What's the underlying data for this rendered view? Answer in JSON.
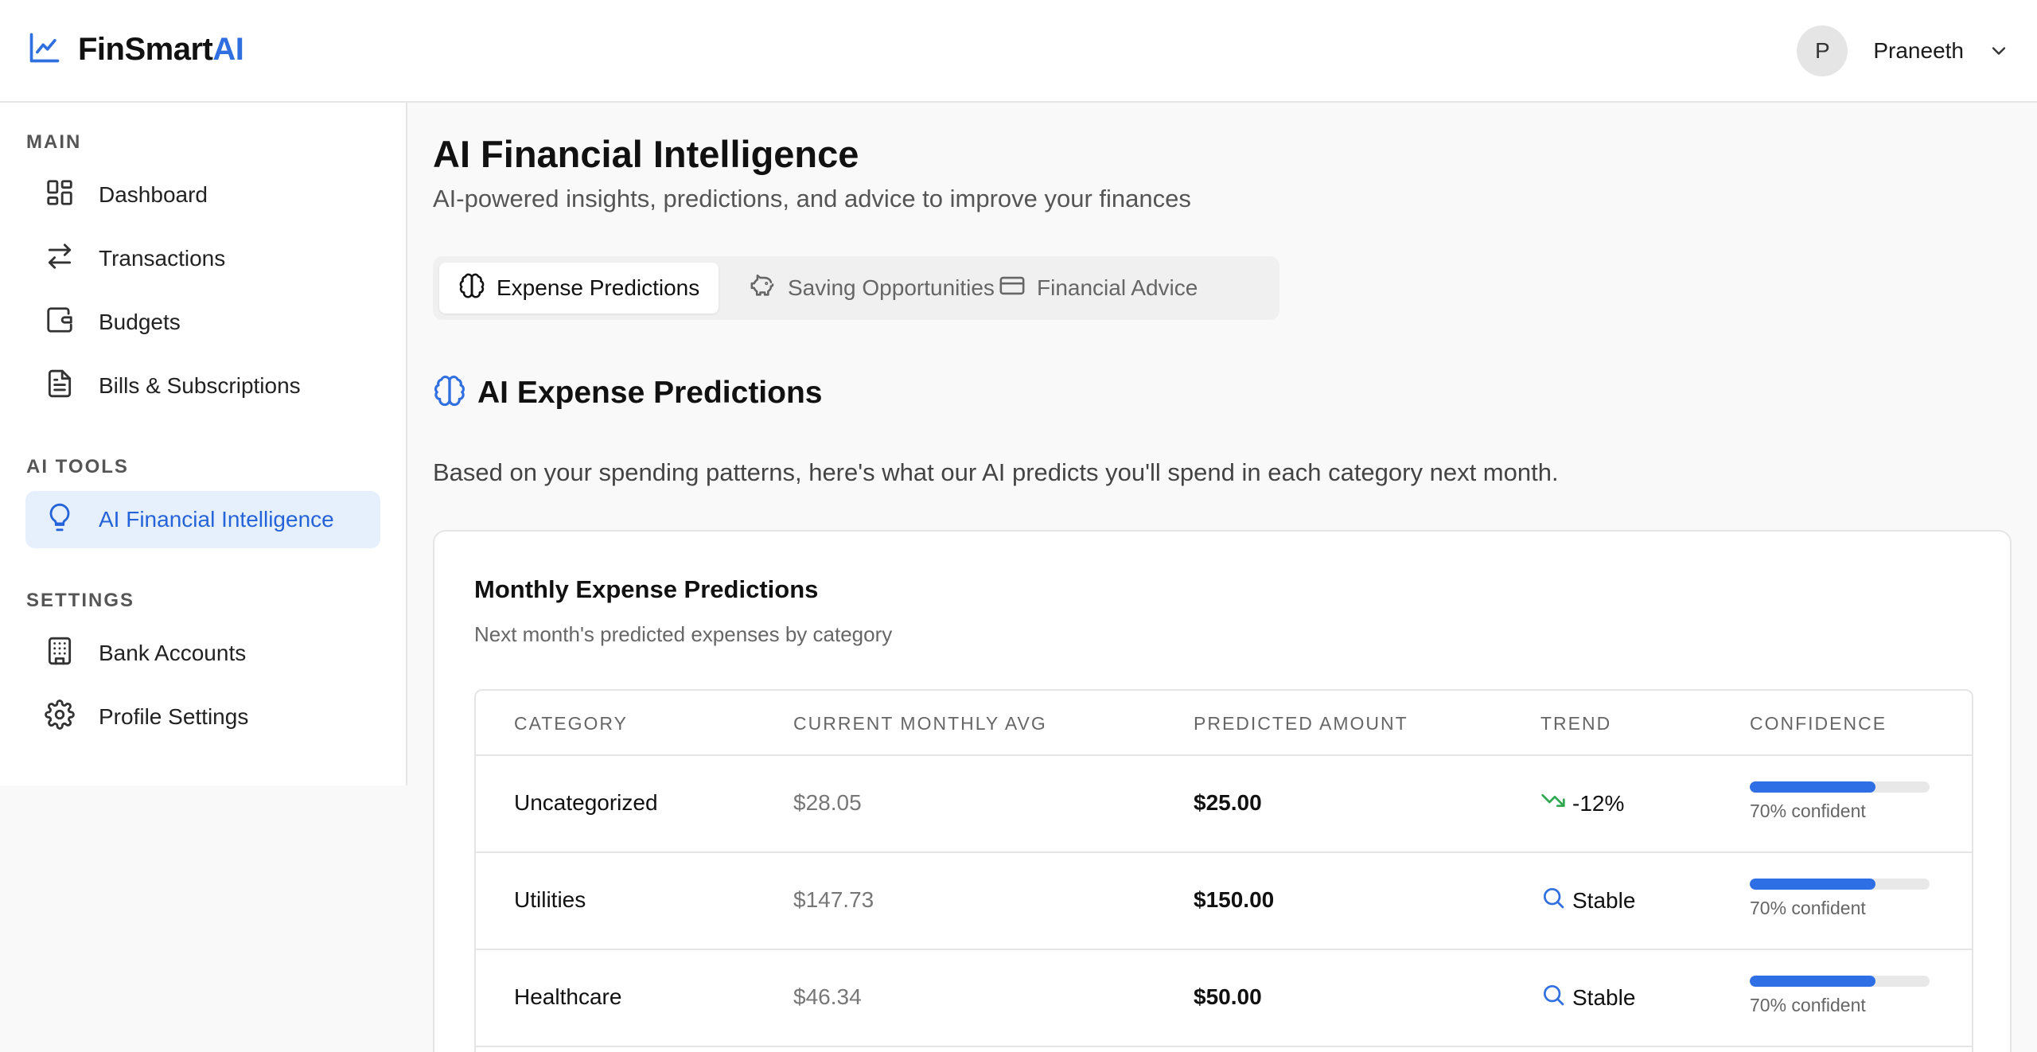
{
  "app": {
    "name_prefix": "FinSmart",
    "name_suffix": "AI",
    "accent": "#2f6fdf"
  },
  "user": {
    "initial": "P",
    "name": "Praneeth"
  },
  "sidebar": {
    "sections": [
      {
        "label": "MAIN",
        "items": [
          {
            "label": "Dashboard",
            "icon": "dashboard-icon"
          },
          {
            "label": "Transactions",
            "icon": "arrows-icon"
          },
          {
            "label": "Budgets",
            "icon": "wallet-icon"
          },
          {
            "label": "Bills & Subscriptions",
            "icon": "file-icon"
          }
        ]
      },
      {
        "label": "AI TOOLS",
        "items": [
          {
            "label": "AI Financial Intelligence",
            "icon": "lightbulb-icon",
            "active": true
          }
        ]
      },
      {
        "label": "SETTINGS",
        "items": [
          {
            "label": "Bank Accounts",
            "icon": "building-icon"
          },
          {
            "label": "Profile Settings",
            "icon": "gear-icon"
          }
        ]
      }
    ]
  },
  "main": {
    "title": "AI Financial Intelligence",
    "subtitle": "AI-powered insights, predictions, and advice to improve your finances",
    "tabs": [
      {
        "label": "Expense Predictions",
        "icon": "brain-icon",
        "active": true
      },
      {
        "label": "Saving Opportunities",
        "icon": "piggy-bank-icon"
      },
      {
        "label": "Financial Advice",
        "icon": "credit-card-icon"
      }
    ],
    "section_title": "AI Expense Predictions",
    "section_desc": "Based on your spending patterns, here's what our AI predicts you'll spend in each category next month.",
    "card": {
      "title": "Monthly Expense Predictions",
      "subtitle": "Next month's predicted expenses by category",
      "columns": [
        "CATEGORY",
        "CURRENT MONTHLY AVG",
        "PREDICTED AMOUNT",
        "TREND",
        "CONFIDENCE"
      ],
      "rows": [
        {
          "category": "Uncategorized",
          "current": "$28.05",
          "predicted": "$25.00",
          "trend": "-12%",
          "trend_icon": "trending-down-icon",
          "confidence": 0.7,
          "confidence_label": "70% confident"
        },
        {
          "category": "Utilities",
          "current": "$147.73",
          "predicted": "$150.00",
          "trend": "Stable",
          "trend_icon": "search-icon",
          "confidence": 0.7,
          "confidence_label": "70% confident"
        },
        {
          "category": "Healthcare",
          "current": "$46.34",
          "predicted": "$50.00",
          "trend": "Stable",
          "trend_icon": "search-icon",
          "confidence": 0.7,
          "confidence_label": "70% confident"
        }
      ]
    }
  }
}
